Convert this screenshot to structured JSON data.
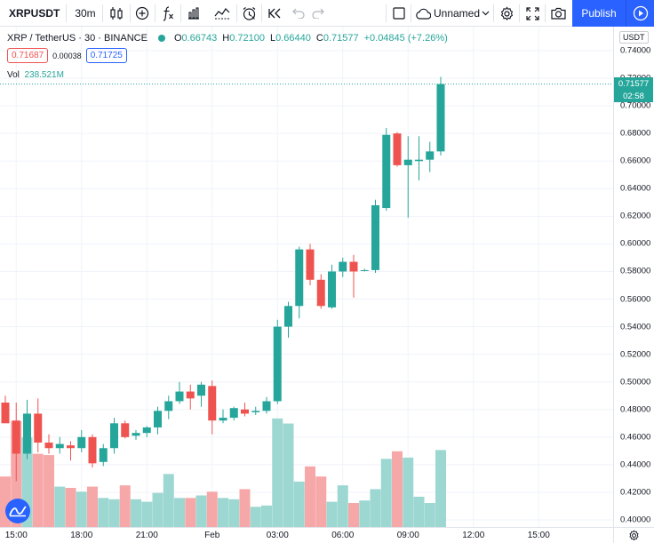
{
  "toolbar": {
    "symbol": "XRPUSDT",
    "interval": "30m",
    "layout_name": "Unnamed",
    "publish_label": "Publish",
    "icons": [
      "candles-icon",
      "compare-add-icon",
      "indicators-fx-icon",
      "financials-icon",
      "templates-icon",
      "alert-clock-icon",
      "replay-icon",
      "undo-icon",
      "redo-icon",
      "fullscreen-toggle-icon",
      "cloud-icon",
      "settings-gear-icon",
      "fullscreen-icon",
      "camera-icon",
      "play-icon"
    ]
  },
  "legend": {
    "title": "XRP / TetherUS · 30 · BINANCE",
    "o_label": "O",
    "o_value": "0.66743",
    "h_label": "H",
    "h_value": "0.72100",
    "l_label": "L",
    "l_value": "0.66440",
    "c_label": "C",
    "c_value": "0.71577",
    "change": "+0.04845 (+7.26%)",
    "sell_price": "0.71687",
    "spread": "0.00038",
    "buy_price": "0.71725",
    "vol_label": "Vol",
    "vol_value": "238.521M"
  },
  "axis": {
    "currency": "USDT",
    "last_price": "0.71577",
    "countdown": "02:58"
  },
  "colors": {
    "up": "#26a69a",
    "down": "#ef5350",
    "up_volume": "#9cd7d1",
    "down_volume": "#f5a8a7",
    "accent": "#2962ff"
  },
  "chart_data": {
    "type": "candlestick",
    "title": "XRP / TetherUS · 30 · BINANCE",
    "ylim": [
      0.4,
      0.745
    ],
    "y_ticks": [
      "0.74000",
      "0.72000",
      "0.70000",
      "0.68000",
      "0.66000",
      "0.64000",
      "0.62000",
      "0.60000",
      "0.58000",
      "0.56000",
      "0.54000",
      "0.52000",
      "0.50000",
      "0.48000",
      "0.46000",
      "0.44000",
      "0.42000",
      "0.40000"
    ],
    "x_ticks": [
      {
        "label": "15:00",
        "index": 1
      },
      {
        "label": "18:00",
        "index": 7
      },
      {
        "label": "21:00",
        "index": 13
      },
      {
        "label": "Feb",
        "index": 19
      },
      {
        "label": "03:00",
        "index": 25
      },
      {
        "label": "06:00",
        "index": 31
      },
      {
        "label": "09:00",
        "index": 37
      },
      {
        "label": "12:00",
        "index": 43
      },
      {
        "label": "15:00",
        "index": 49
      }
    ],
    "candles": [
      {
        "o": 0.485,
        "h": 0.49,
        "l": 0.472,
        "c": 0.47
      },
      {
        "o": 0.472,
        "h": 0.485,
        "l": 0.428,
        "c": 0.448
      },
      {
        "o": 0.448,
        "h": 0.487,
        "l": 0.444,
        "c": 0.477
      },
      {
        "o": 0.477,
        "h": 0.488,
        "l": 0.449,
        "c": 0.456
      },
      {
        "o": 0.456,
        "h": 0.462,
        "l": 0.448,
        "c": 0.452
      },
      {
        "o": 0.452,
        "h": 0.46,
        "l": 0.448,
        "c": 0.455
      },
      {
        "o": 0.454,
        "h": 0.457,
        "l": 0.443,
        "c": 0.452
      },
      {
        "o": 0.452,
        "h": 0.465,
        "l": 0.449,
        "c": 0.46
      },
      {
        "o": 0.46,
        "h": 0.462,
        "l": 0.438,
        "c": 0.441
      },
      {
        "o": 0.442,
        "h": 0.455,
        "l": 0.439,
        "c": 0.452
      },
      {
        "o": 0.452,
        "h": 0.474,
        "l": 0.448,
        "c": 0.47
      },
      {
        "o": 0.47,
        "h": 0.472,
        "l": 0.459,
        "c": 0.46
      },
      {
        "o": 0.461,
        "h": 0.465,
        "l": 0.458,
        "c": 0.463
      },
      {
        "o": 0.463,
        "h": 0.468,
        "l": 0.46,
        "c": 0.467
      },
      {
        "o": 0.467,
        "h": 0.482,
        "l": 0.462,
        "c": 0.479
      },
      {
        "o": 0.479,
        "h": 0.49,
        "l": 0.473,
        "c": 0.486
      },
      {
        "o": 0.486,
        "h": 0.5,
        "l": 0.484,
        "c": 0.493
      },
      {
        "o": 0.493,
        "h": 0.498,
        "l": 0.48,
        "c": 0.488
      },
      {
        "o": 0.49,
        "h": 0.5,
        "l": 0.482,
        "c": 0.498
      },
      {
        "o": 0.497,
        "h": 0.501,
        "l": 0.462,
        "c": 0.472
      },
      {
        "o": 0.472,
        "h": 0.48,
        "l": 0.47,
        "c": 0.474
      },
      {
        "o": 0.474,
        "h": 0.482,
        "l": 0.472,
        "c": 0.481
      },
      {
        "o": 0.48,
        "h": 0.485,
        "l": 0.475,
        "c": 0.477
      },
      {
        "o": 0.478,
        "h": 0.482,
        "l": 0.476,
        "c": 0.479
      },
      {
        "o": 0.479,
        "h": 0.489,
        "l": 0.477,
        "c": 0.486
      },
      {
        "o": 0.486,
        "h": 0.545,
        "l": 0.484,
        "c": 0.54
      },
      {
        "o": 0.54,
        "h": 0.558,
        "l": 0.532,
        "c": 0.555
      },
      {
        "o": 0.555,
        "h": 0.598,
        "l": 0.546,
        "c": 0.596
      },
      {
        "o": 0.596,
        "h": 0.6,
        "l": 0.57,
        "c": 0.574
      },
      {
        "o": 0.574,
        "h": 0.578,
        "l": 0.553,
        "c": 0.555
      },
      {
        "o": 0.554,
        "h": 0.585,
        "l": 0.553,
        "c": 0.58
      },
      {
        "o": 0.58,
        "h": 0.59,
        "l": 0.576,
        "c": 0.587
      },
      {
        "o": 0.587,
        "h": 0.592,
        "l": 0.561,
        "c": 0.58
      },
      {
        "o": 0.581,
        "h": 0.582,
        "l": 0.58,
        "c": 0.581
      },
      {
        "o": 0.581,
        "h": 0.632,
        "l": 0.579,
        "c": 0.628
      },
      {
        "o": 0.626,
        "h": 0.684,
        "l": 0.624,
        "c": 0.679
      },
      {
        "o": 0.68,
        "h": 0.681,
        "l": 0.656,
        "c": 0.657
      },
      {
        "o": 0.657,
        "h": 0.678,
        "l": 0.619,
        "c": 0.661
      },
      {
        "o": 0.66,
        "h": 0.678,
        "l": 0.646,
        "c": 0.661
      },
      {
        "o": 0.661,
        "h": 0.674,
        "l": 0.652,
        "c": 0.667
      },
      {
        "o": 0.667,
        "h": 0.721,
        "l": 0.664,
        "c": 0.7158
      }
    ],
    "volume_fraction": [
      0.4,
      0.84,
      0.71,
      0.58,
      0.57,
      0.32,
      0.31,
      0.28,
      0.32,
      0.23,
      0.22,
      0.33,
      0.22,
      0.2,
      0.27,
      0.42,
      0.23,
      0.23,
      0.25,
      0.28,
      0.23,
      0.22,
      0.3,
      0.16,
      0.17,
      0.86,
      0.82,
      0.36,
      0.48,
      0.4,
      0.2,
      0.33,
      0.19,
      0.21,
      0.3,
      0.54,
      0.6,
      0.55,
      0.24,
      0.19,
      0.61
    ]
  }
}
